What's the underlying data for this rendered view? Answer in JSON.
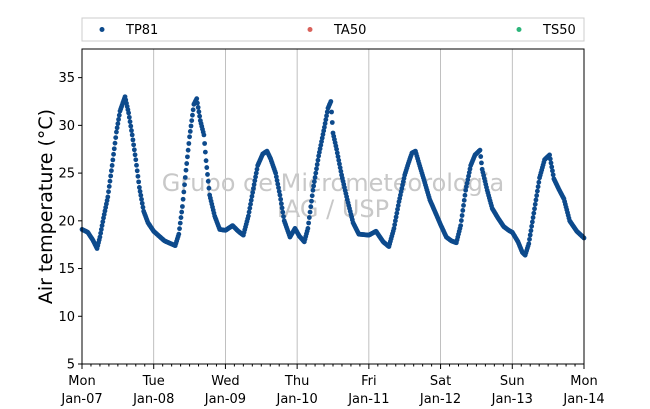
{
  "chart_data": {
    "type": "scatter",
    "ylabel": "Air temperature (°C)",
    "ylim": [
      5,
      38
    ],
    "y_ticks": [
      5,
      10,
      15,
      20,
      25,
      30,
      35
    ],
    "x_range_days": [
      0,
      7
    ],
    "x_tick_labels": [
      {
        "day": "Mon",
        "date": "Jan-07"
      },
      {
        "day": "Tue",
        "date": "Jan-08"
      },
      {
        "day": "Wed",
        "date": "Jan-09"
      },
      {
        "day": "Thu",
        "date": "Jan-10"
      },
      {
        "day": "Fri",
        "date": "Jan-11"
      },
      {
        "day": "Sat",
        "date": "Jan-12"
      },
      {
        "day": "Sun",
        "date": "Jan-13"
      },
      {
        "day": "Mon",
        "date": "Jan-14"
      }
    ],
    "grid": "vertical-at-day-boundaries",
    "legend_placement": "top, outside plot",
    "watermark": [
      "Grupo de Micrometeorologia",
      "IAG / USP"
    ],
    "series": [
      {
        "name": "TP81",
        "color": "#0d4a8c",
        "points": [
          [
            0.0,
            19.1
          ],
          [
            0.08,
            18.8
          ],
          [
            0.15,
            18.0
          ],
          [
            0.21,
            17.1
          ],
          [
            0.25,
            18.3
          ],
          [
            0.3,
            20.3
          ],
          [
            0.36,
            22.5
          ],
          [
            0.42,
            25.8
          ],
          [
            0.48,
            29.3
          ],
          [
            0.53,
            31.5
          ],
          [
            0.6,
            33.0
          ],
          [
            0.65,
            31.3
          ],
          [
            0.7,
            29.0
          ],
          [
            0.75,
            26.4
          ],
          [
            0.8,
            23.5
          ],
          [
            0.86,
            21.0
          ],
          [
            0.92,
            19.8
          ],
          [
            1.0,
            18.9
          ],
          [
            1.15,
            17.9
          ],
          [
            1.3,
            17.4
          ],
          [
            1.35,
            18.6
          ],
          [
            1.4,
            21.5
          ],
          [
            1.45,
            25.3
          ],
          [
            1.5,
            28.8
          ],
          [
            1.56,
            32.2
          ],
          [
            1.6,
            32.8
          ],
          [
            1.65,
            30.5
          ],
          [
            1.7,
            29.0
          ],
          [
            1.73,
            26.3
          ],
          [
            1.78,
            22.7
          ],
          [
            1.85,
            20.5
          ],
          [
            1.92,
            19.1
          ],
          [
            2.0,
            19.0
          ],
          [
            2.1,
            19.5
          ],
          [
            2.18,
            18.9
          ],
          [
            2.25,
            18.5
          ],
          [
            2.32,
            20.5
          ],
          [
            2.4,
            23.8
          ],
          [
            2.45,
            25.8
          ],
          [
            2.52,
            27.0
          ],
          [
            2.58,
            27.3
          ],
          [
            2.63,
            26.5
          ],
          [
            2.7,
            25.0
          ],
          [
            2.76,
            22.7
          ],
          [
            2.82,
            20.0
          ],
          [
            2.9,
            18.3
          ],
          [
            2.97,
            19.2
          ],
          [
            3.03,
            18.4
          ],
          [
            3.1,
            17.8
          ],
          [
            3.15,
            19.2
          ],
          [
            3.22,
            23.2
          ],
          [
            3.3,
            26.8
          ],
          [
            3.38,
            29.8
          ],
          [
            3.43,
            31.8
          ],
          [
            3.47,
            32.5
          ],
          [
            3.5,
            29.2
          ],
          [
            3.55,
            27.5
          ],
          [
            3.62,
            24.8
          ],
          [
            3.7,
            22.2
          ],
          [
            3.78,
            19.8
          ],
          [
            3.86,
            18.6
          ],
          [
            4.0,
            18.5
          ],
          [
            4.1,
            18.9
          ],
          [
            4.2,
            17.8
          ],
          [
            4.28,
            17.3
          ],
          [
            4.35,
            19.2
          ],
          [
            4.42,
            22.0
          ],
          [
            4.5,
            24.8
          ],
          [
            4.55,
            26.0
          ],
          [
            4.6,
            27.1
          ],
          [
            4.65,
            27.3
          ],
          [
            4.7,
            26.0
          ],
          [
            4.78,
            24.0
          ],
          [
            4.85,
            22.2
          ],
          [
            4.92,
            21.0
          ],
          [
            5.0,
            19.6
          ],
          [
            5.08,
            18.3
          ],
          [
            5.15,
            17.9
          ],
          [
            5.22,
            17.7
          ],
          [
            5.28,
            19.5
          ],
          [
            5.35,
            23.2
          ],
          [
            5.42,
            25.8
          ],
          [
            5.48,
            26.9
          ],
          [
            5.55,
            27.4
          ],
          [
            5.58,
            25.4
          ],
          [
            5.65,
            23.2
          ],
          [
            5.72,
            21.3
          ],
          [
            5.8,
            20.3
          ],
          [
            5.88,
            19.4
          ],
          [
            5.95,
            19.0
          ],
          [
            6.0,
            18.8
          ],
          [
            6.08,
            17.8
          ],
          [
            6.14,
            16.7
          ],
          [
            6.18,
            16.4
          ],
          [
            6.23,
            17.6
          ],
          [
            6.3,
            20.8
          ],
          [
            6.38,
            24.5
          ],
          [
            6.45,
            26.4
          ],
          [
            6.52,
            26.9
          ],
          [
            6.58,
            24.4
          ],
          [
            6.65,
            23.3
          ],
          [
            6.72,
            22.3
          ],
          [
            6.8,
            20.0
          ],
          [
            6.9,
            18.9
          ],
          [
            7.0,
            18.2
          ]
        ]
      },
      {
        "name": "TA50",
        "color": "#d9625b",
        "points": []
      },
      {
        "name": "TS50",
        "color": "#2cb57a",
        "points": []
      }
    ]
  }
}
